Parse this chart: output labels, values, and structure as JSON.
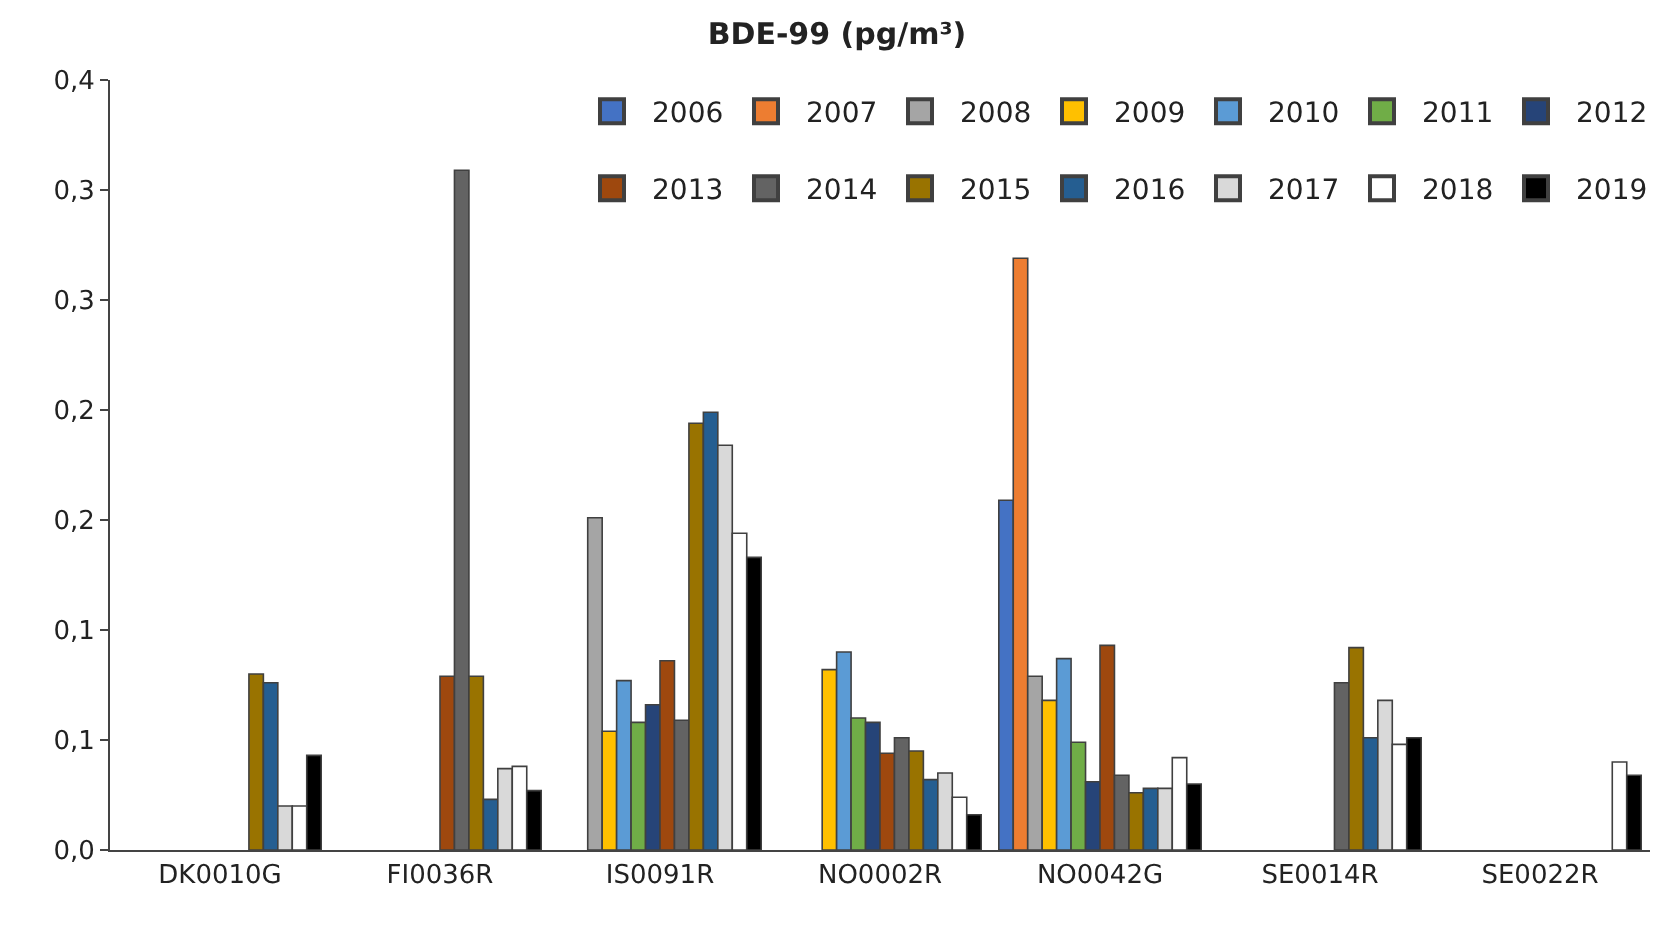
{
  "chart_data": {
    "type": "bar",
    "title": "BDE-99 (pg/m³)",
    "categories": [
      "DK0010G",
      "FI0036R",
      "IS0091R",
      "NO0002R",
      "NO0042G",
      "SE0014R",
      "SE0022R"
    ],
    "series": [
      {
        "name": "2006",
        "color": "#4472c4",
        "values": [
          null,
          null,
          null,
          null,
          0.159,
          null,
          null
        ]
      },
      {
        "name": "2007",
        "color": "#ed7d31",
        "values": [
          null,
          null,
          null,
          null,
          0.269,
          null,
          null
        ]
      },
      {
        "name": "2008",
        "color": "#a5a5a5",
        "values": [
          null,
          null,
          0.151,
          null,
          0.079,
          null,
          null
        ]
      },
      {
        "name": "2009",
        "color": "#ffc000",
        "values": [
          null,
          null,
          0.054,
          0.082,
          0.068,
          null,
          null
        ]
      },
      {
        "name": "2010",
        "color": "#5b9bd5",
        "values": [
          null,
          null,
          0.077,
          0.09,
          0.087,
          null,
          null
        ]
      },
      {
        "name": "2011",
        "color": "#70ad47",
        "values": [
          null,
          null,
          0.058,
          0.06,
          0.049,
          null,
          null
        ]
      },
      {
        "name": "2012",
        "color": "#264478",
        "values": [
          null,
          null,
          0.066,
          0.058,
          0.031,
          null,
          null
        ]
      },
      {
        "name": "2013",
        "color": "#9e480e",
        "values": [
          null,
          0.079,
          0.086,
          0.044,
          0.093,
          null,
          null
        ]
      },
      {
        "name": "2014",
        "color": "#636363",
        "values": [
          null,
          0.309,
          0.059,
          0.051,
          0.034,
          0.076,
          null
        ]
      },
      {
        "name": "2015",
        "color": "#997300",
        "values": [
          0.08,
          0.079,
          0.194,
          0.045,
          0.026,
          0.092,
          null
        ]
      },
      {
        "name": "2016",
        "color": "#255e91",
        "values": [
          0.076,
          0.023,
          0.199,
          0.032,
          0.028,
          0.051,
          null
        ]
      },
      {
        "name": "2017",
        "color": "#d9d9d9",
        "values": [
          0.02,
          0.037,
          0.184,
          0.035,
          0.028,
          0.068,
          null
        ]
      },
      {
        "name": "2018",
        "color": "#ffffff",
        "values": [
          0.02,
          0.038,
          0.144,
          0.024,
          0.042,
          0.048,
          0.04
        ]
      },
      {
        "name": "2019",
        "color": "#000000",
        "values": [
          0.043,
          0.027,
          0.133,
          0.016,
          0.03,
          0.051,
          0.034
        ]
      }
    ],
    "ylim": [
      0,
      0.35
    ],
    "yticks": [
      {
        "value": 0,
        "label": "0,0"
      },
      {
        "value": 0.05,
        "label": "0,1"
      },
      {
        "value": 0.1,
        "label": "0,1"
      },
      {
        "value": 0.15,
        "label": "0,2"
      },
      {
        "value": 0.2,
        "label": "0,2"
      },
      {
        "value": 0.25,
        "label": "0,3"
      },
      {
        "value": 0.3,
        "label": "0,3"
      },
      {
        "value": 0.35,
        "label": "0,4"
      }
    ],
    "grid": false,
    "legend": "top right"
  }
}
